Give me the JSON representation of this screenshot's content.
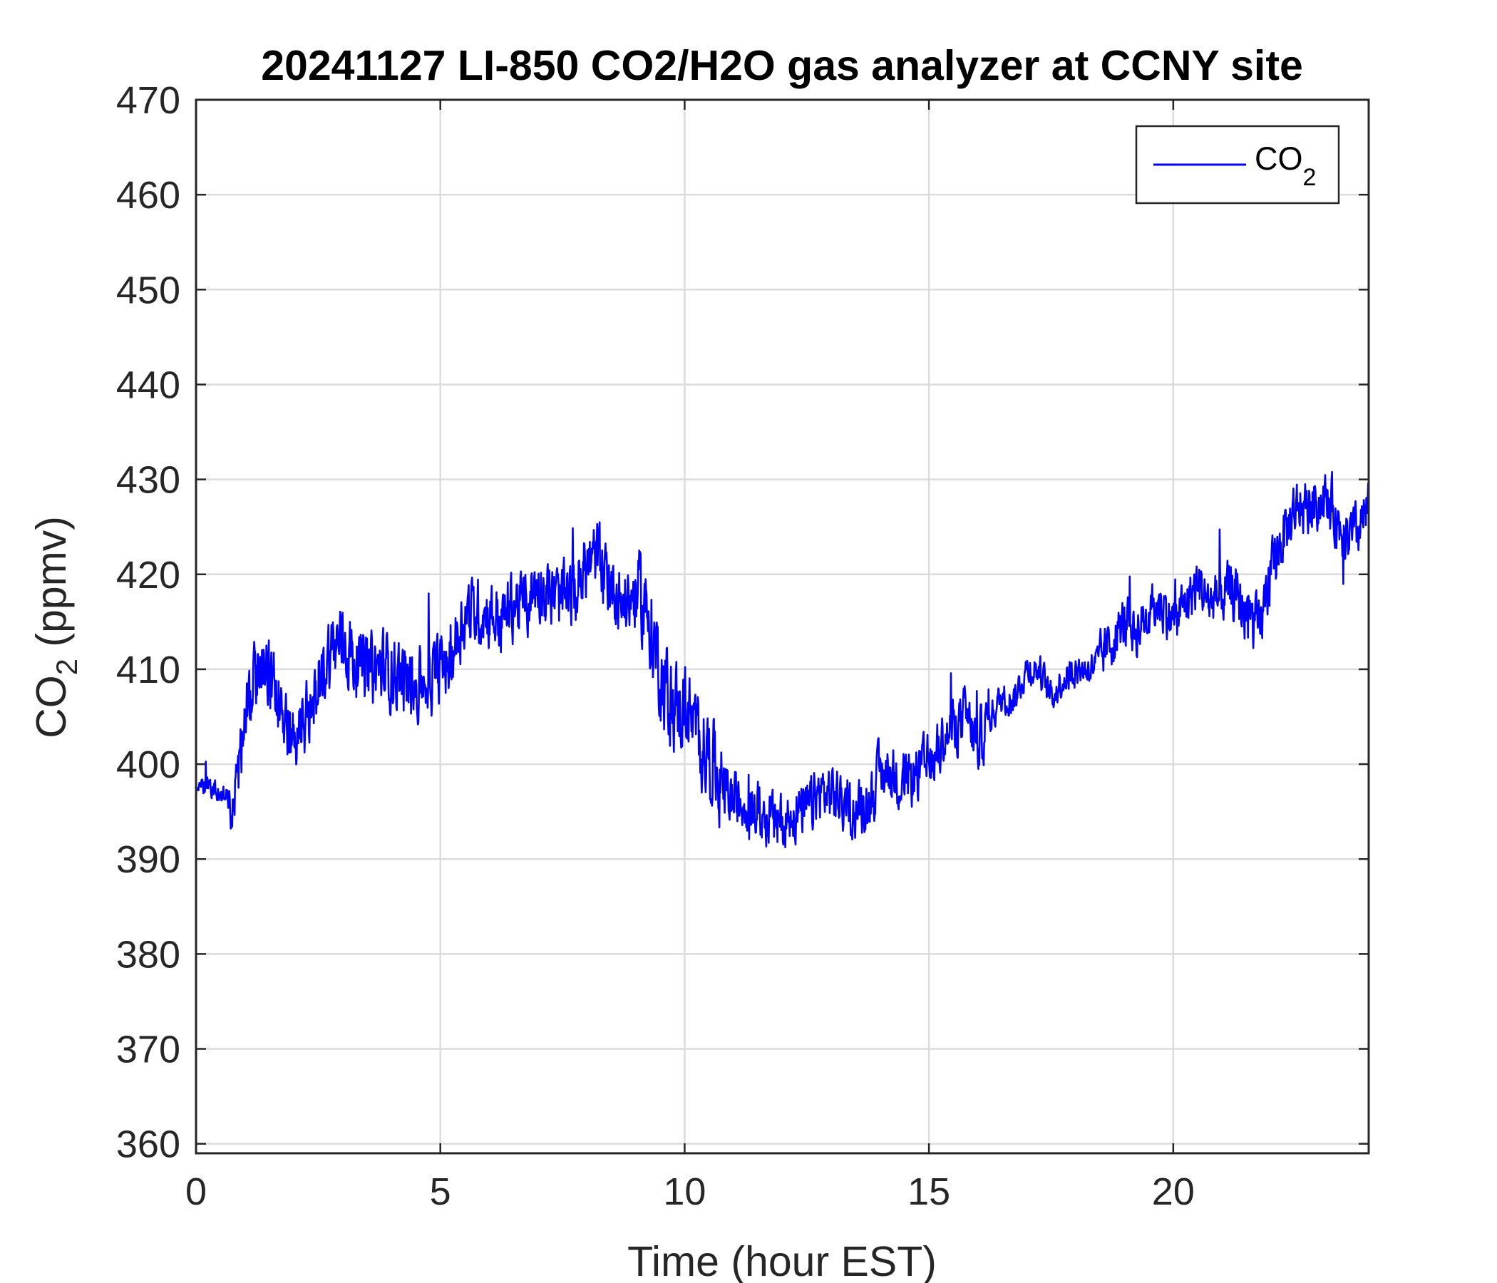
{
  "chart_data": {
    "type": "line",
    "title": "20241127 LI-850 CO2/H2O gas analyzer at CCNY site",
    "xlabel": "Time (hour EST)",
    "ylabel_main": "CO",
    "ylabel_sub": "2",
    "ylabel_unit": " (ppmv)",
    "xlim": [
      0,
      24
    ],
    "ylim": [
      359,
      470
    ],
    "xticks": [
      0,
      5,
      10,
      15,
      20
    ],
    "xtick_labels": [
      "0",
      "5",
      "10",
      "15",
      "20"
    ],
    "yticks": [
      360,
      370,
      380,
      390,
      400,
      410,
      420,
      430,
      440,
      450,
      460,
      470
    ],
    "ytick_labels": [
      "360",
      "370",
      "380",
      "390",
      "400",
      "410",
      "420",
      "430",
      "440",
      "450",
      "460",
      "470"
    ],
    "grid": true,
    "legend": {
      "placement": "top-right",
      "main": "CO",
      "sub": "2"
    },
    "series": [
      {
        "name": "CO2",
        "color": "#0000ff",
        "x": [
          0,
          0.25,
          0.5,
          0.75,
          1.0,
          1.25,
          1.5,
          1.75,
          2.0,
          2.25,
          2.5,
          2.75,
          3.0,
          3.25,
          3.5,
          3.75,
          4.0,
          4.25,
          4.5,
          4.75,
          5.0,
          5.25,
          5.5,
          5.75,
          6.0,
          6.25,
          6.5,
          6.75,
          7.0,
          7.25,
          7.5,
          7.75,
          8.0,
          8.25,
          8.5,
          8.75,
          9.0,
          9.25,
          9.5,
          9.75,
          10.0,
          10.25,
          10.5,
          10.75,
          11.0,
          11.25,
          11.5,
          11.75,
          12.0,
          12.25,
          12.5,
          12.75,
          13.0,
          13.25,
          13.5,
          13.75,
          14.0,
          14.25,
          14.5,
          14.75,
          15.0,
          15.25,
          15.5,
          15.75,
          16.0,
          16.25,
          16.5,
          16.75,
          17.0,
          17.25,
          17.5,
          17.75,
          18.0,
          18.25,
          18.5,
          18.75,
          19.0,
          19.25,
          19.5,
          19.75,
          20.0,
          20.25,
          20.5,
          20.75,
          21.0,
          21.25,
          21.5,
          21.75,
          22.0,
          22.25,
          22.5,
          22.75,
          23.0,
          23.25,
          23.5,
          23.75,
          24.0
        ],
        "y": [
          397,
          398,
          397,
          396,
          404,
          410,
          409,
          407,
          403,
          404,
          409,
          412,
          413,
          411,
          410,
          410,
          410,
          409,
          408,
          409,
          410,
          412,
          416,
          416,
          416,
          415,
          417,
          417,
          419,
          418,
          417,
          418,
          421,
          422,
          419,
          417,
          418,
          416,
          410,
          406,
          406,
          403,
          401,
          398,
          396,
          396,
          395,
          394,
          394,
          395,
          395,
          397,
          397,
          396,
          395,
          396,
          399,
          399,
          398,
          399,
          400,
          402,
          404,
          405,
          402,
          405,
          407,
          407,
          410,
          410,
          407,
          409,
          410,
          410,
          411,
          413,
          415,
          414,
          416,
          417,
          415,
          417,
          419,
          417,
          418,
          418,
          416,
          414,
          420,
          424,
          427,
          427,
          428,
          427,
          424,
          424,
          427
        ]
      }
    ]
  }
}
